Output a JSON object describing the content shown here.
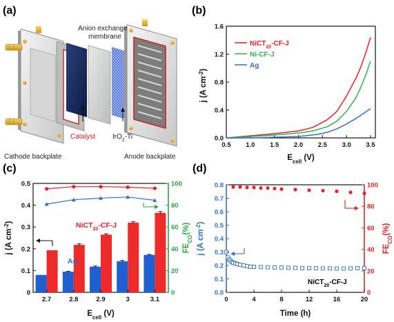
{
  "panels": {
    "a": {
      "label": "(a)",
      "texts": {
        "membrane_line1": "Anion exchange",
        "membrane_line2": "membrane",
        "catalyst": "Catalyst",
        "iro2_main": "IrO",
        "iro2_sub": "2",
        "iro2_rest": "-Ti",
        "cathode": "Cathode backplate",
        "anode": "Anode backplate"
      }
    },
    "b": {
      "label": "(b)",
      "ylabel_main": "j (A cm",
      "ylabel_sup": "-2",
      "ylabel_end": ")",
      "xlabel_main": "E",
      "xlabel_sub": "cell",
      "xlabel_end": " (V)",
      "legend": [
        {
          "main": "NiCT",
          "sub": "20",
          "rest": "-CF-J"
        },
        {
          "main": "Ni-CF-J",
          "sub": "",
          "rest": ""
        },
        {
          "main": "Ag",
          "sub": "",
          "rest": ""
        }
      ]
    },
    "c": {
      "label": "(c)",
      "ylabel_main": "j (A cm",
      "ylabel_sup": "-2",
      "ylabel_end": ")",
      "y2label_main": "FE",
      "y2label_sub": "CO",
      "y2label_end": "(%)",
      "xlabel_main": "E",
      "xlabel_sub": "cell",
      "xlabel_end": " (V)",
      "ann_main": "NiCT",
      "ann_sub": "20",
      "ann_rest": "-CF-J",
      "ann_ag": "Ag"
    },
    "d": {
      "label": "(d)",
      "ylabel_main": "j (A cm",
      "ylabel_sup": "-2",
      "ylabel_end": ")",
      "y2label_main": "FE",
      "y2label_sub": "CO",
      "y2label_end": "(%)",
      "xlabel": "Time (h)",
      "ann_main": "NiCT",
      "ann_sub": "20",
      "ann_rest": "-CF-J"
    }
  },
  "colors": {
    "red": "#ee1f24",
    "green": "#2fb34a",
    "blue": "#2f6fcf",
    "bar_blue": "#1f5fd0",
    "bar_red": "#ee2a2a",
    "ax_green": "#27a844",
    "ax_red": "#e21e1e",
    "ax_blue": "#2f6fcf"
  },
  "chart_data": [
    {
      "panel": "b",
      "type": "line",
      "xlim": [
        0.5,
        3.6
      ],
      "ylim": [
        0,
        1.6
      ],
      "xticks": [
        "0.5",
        "1.0",
        "1.5",
        "2.0",
        "2.5",
        "3.0",
        "3.5"
      ],
      "yticks": [
        "0.0",
        "0.4",
        "0.8",
        "1.2",
        "1.6"
      ],
      "xlabel": "Ecell (V)",
      "ylabel": "j (A cm-2)",
      "legend_position": "top-left",
      "series": [
        {
          "name": "NiCT20-CF-J",
          "color": "red",
          "x": [
            0.5,
            1.0,
            1.5,
            2.0,
            2.3,
            2.6,
            2.8,
            3.0,
            3.2,
            3.3,
            3.4,
            3.5
          ],
          "y": [
            0.0,
            0.03,
            0.06,
            0.1,
            0.15,
            0.26,
            0.38,
            0.6,
            0.86,
            1.02,
            1.22,
            1.44
          ]
        },
        {
          "name": "Ni-CF-J",
          "color": "green",
          "x": [
            0.5,
            1.0,
            1.5,
            2.0,
            2.3,
            2.6,
            2.8,
            3.0,
            3.2,
            3.3,
            3.4,
            3.5
          ],
          "y": [
            0.0,
            0.02,
            0.04,
            0.07,
            0.1,
            0.16,
            0.24,
            0.38,
            0.58,
            0.73,
            0.9,
            1.1
          ]
        },
        {
          "name": "Ag",
          "color": "blue",
          "x": [
            0.5,
            1.0,
            1.5,
            2.0,
            2.4,
            2.6,
            2.8,
            3.0,
            3.2,
            3.35,
            3.5
          ],
          "y": [
            0.0,
            0.0,
            0.01,
            0.02,
            0.05,
            0.08,
            0.13,
            0.2,
            0.28,
            0.35,
            0.42
          ]
        }
      ]
    },
    {
      "panel": "c",
      "type": "bar",
      "categories": [
        "2.7",
        "2.8",
        "2.9",
        "3",
        "3.1"
      ],
      "ylim": [
        0,
        0.5
      ],
      "y2lim": [
        0,
        100
      ],
      "yticks": [
        "0",
        "0.1",
        "0.2",
        "0.3",
        "0.4",
        "0.5"
      ],
      "y2ticks": [
        "0",
        "20",
        "40",
        "60",
        "80",
        "100"
      ],
      "xlabel": "Ecell (V)",
      "ylabel": "j (A cm-2)",
      "y2label": "FECO(%)",
      "series": [
        {
          "name": "Ag",
          "kind": "bar",
          "axis": "left",
          "color": "bar_blue",
          "values": [
            0.08,
            0.095,
            0.118,
            0.143,
            0.172
          ],
          "errors": [
            0.0,
            0.002,
            0.003,
            0.004,
            0.002
          ]
        },
        {
          "name": "NiCT20-CF-J",
          "kind": "bar",
          "axis": "left",
          "color": "bar_red",
          "values": [
            0.193,
            0.218,
            0.265,
            0.32,
            0.365
          ],
          "errors": [
            0.0,
            0.005,
            0.004,
            0.004,
            0.006
          ]
        },
        {
          "name": "NiCT20-CF-J FE",
          "kind": "line",
          "marker": "circle",
          "axis": "right",
          "color": "red",
          "values": [
            95,
            97,
            97,
            96.5,
            95.5
          ]
        },
        {
          "name": "Ag FE",
          "kind": "line",
          "marker": "triangle",
          "axis": "right",
          "color": "blue",
          "values": [
            81,
            85,
            86.5,
            87.5,
            84.5
          ]
        }
      ]
    },
    {
      "panel": "d",
      "type": "scatter",
      "xlim": [
        0,
        20
      ],
      "ylim": [
        0,
        0.8
      ],
      "y2lim": [
        0,
        100
      ],
      "xticks": [
        "0",
        "4",
        "8",
        "12",
        "16",
        "20"
      ],
      "yticks": [
        "0.0",
        "0.1",
        "0.2",
        "0.3",
        "0.4",
        "0.5",
        "0.6",
        "0.7",
        "0.8"
      ],
      "y2ticks": [
        "0",
        "20",
        "40",
        "60",
        "80",
        "100"
      ],
      "xlabel": "Time (h)",
      "ylabel": "j (A cm-2)",
      "y2label": "FECO(%)",
      "series": [
        {
          "name": "FE",
          "axis": "right",
          "color": "red",
          "marker": "circle",
          "x": [
            1,
            2,
            3,
            4,
            5,
            6,
            7,
            8,
            10,
            12,
            14,
            16,
            18,
            20
          ],
          "y": [
            98,
            98,
            97.5,
            97.5,
            97,
            97,
            96.5,
            96,
            95.5,
            95,
            94.5,
            94,
            93,
            92
          ]
        },
        {
          "name": "j",
          "axis": "left",
          "color": "blue",
          "marker": "open-square",
          "x": [
            0.0,
            0.2,
            0.4,
            0.6,
            0.8,
            1.0,
            1.3,
            1.6,
            2.0,
            2.5,
            3.0,
            3.5,
            4.0,
            5.0,
            6.0,
            7.0,
            8.0,
            9.0,
            10.0,
            11.0,
            12.0,
            13.0,
            14.0,
            15.0,
            16.0,
            17.0,
            18.0,
            19.0,
            20.0
          ],
          "y": [
            0.3,
            0.26,
            0.245,
            0.235,
            0.225,
            0.22,
            0.215,
            0.21,
            0.205,
            0.2,
            0.195,
            0.19,
            0.19,
            0.188,
            0.186,
            0.185,
            0.184,
            0.183,
            0.182,
            0.18,
            0.18,
            0.179,
            0.178,
            0.178,
            0.177,
            0.177,
            0.178,
            0.18,
            0.18
          ]
        }
      ]
    }
  ]
}
